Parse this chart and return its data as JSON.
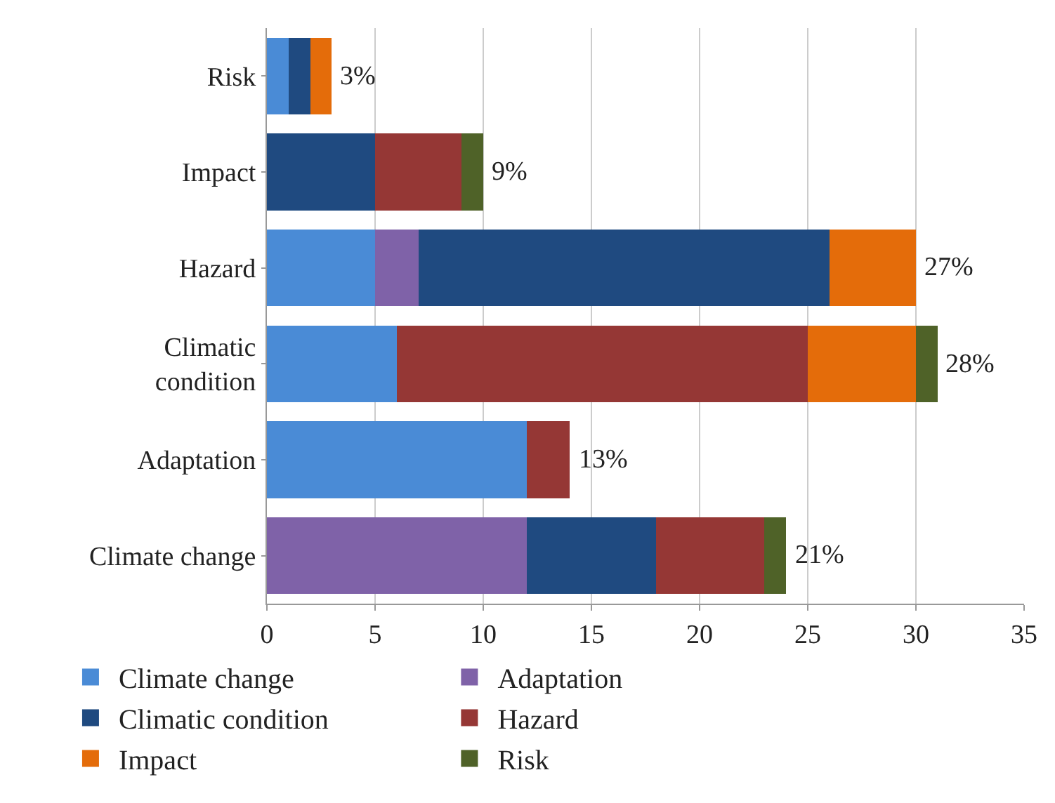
{
  "chart_data": {
    "type": "bar",
    "orientation": "horizontal",
    "stacked": true,
    "categories": [
      "Risk",
      "Impact",
      "Hazard",
      "Climatic\ncondition",
      "Adaptation",
      "Climate change"
    ],
    "series": [
      {
        "name": "Climate change",
        "color": "#4a8bd6",
        "values": [
          1,
          null,
          5,
          6,
          12,
          null
        ]
      },
      {
        "name": "Adaptation",
        "color": "#7f62a8",
        "values": [
          null,
          null,
          2,
          null,
          null,
          12
        ]
      },
      {
        "name": "Climatic condition",
        "color": "#1f4a80",
        "values": [
          1,
          5,
          19,
          null,
          null,
          6
        ]
      },
      {
        "name": "Hazard",
        "color": "#953735",
        "values": [
          null,
          4,
          null,
          19,
          2,
          5
        ]
      },
      {
        "name": "Impact",
        "color": "#e46c0a",
        "values": [
          1,
          null,
          4,
          5,
          null,
          null
        ]
      },
      {
        "name": "Risk",
        "color": "#4f6228",
        "values": [
          null,
          1,
          null,
          1,
          null,
          1
        ]
      }
    ],
    "totals": [
      "3%",
      "9%",
      "27%",
      "28%",
      "13%",
      "21%"
    ],
    "xlim": [
      0,
      35
    ],
    "xticks": [
      0,
      5,
      10,
      15,
      20,
      25,
      30,
      35
    ],
    "grid": "x",
    "legend": "bottom"
  }
}
